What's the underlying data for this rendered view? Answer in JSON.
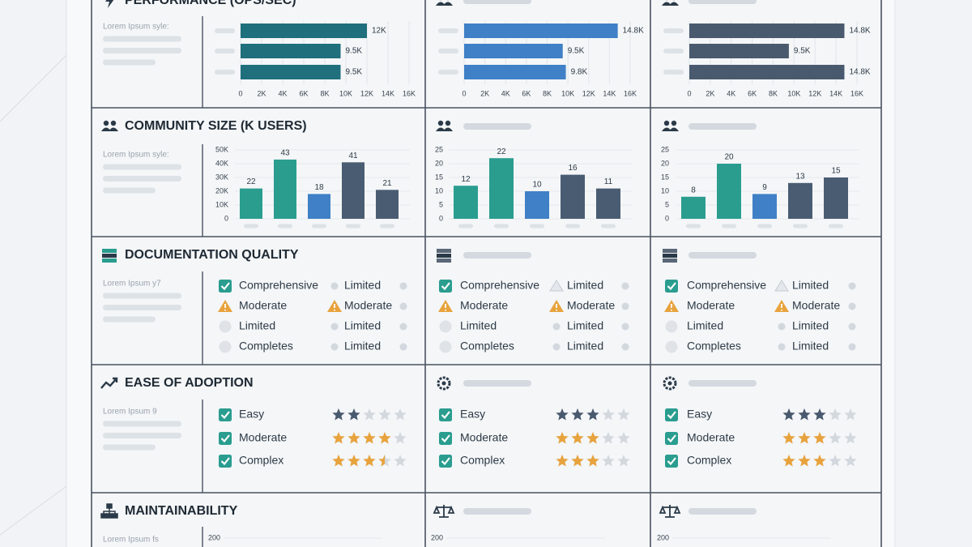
{
  "sections": [
    {
      "title": "PERFORMANCE (OPS/SEC)",
      "caption": "Lorem Ipsum syle:"
    },
    {
      "title": "COMMUNITY SIZE (K USERS)",
      "caption": "Lorem Ipsum syle:"
    },
    {
      "title": "DOCUMENTATION QUALITY",
      "caption": "Lorem Ipsum y7"
    },
    {
      "title": "EASE OF ADOPTION",
      "caption": "Lorem Ipsum 9"
    },
    {
      "title": "MAINTAINABILITY",
      "caption": "Lorem Ipsum fs"
    }
  ],
  "chart_data": [
    {
      "type": "hbar",
      "categories": [
        null,
        null,
        null
      ],
      "values": [
        12,
        9.5,
        9.5
      ],
      "value_labels": [
        "12K",
        "9.5K",
        "9.5K"
      ],
      "color": "#1f6f7c",
      "xlim": [
        0,
        16
      ],
      "xticks": [
        0,
        {
          "value": 2,
          "label": "2K"
        },
        {
          "value": 4,
          "label": "4K"
        },
        {
          "value": 6,
          "label": "6K"
        },
        {
          "value": 8,
          "label": "8K"
        },
        {
          "value": 10,
          "label": "10K"
        },
        {
          "value": 12,
          "label": "12K"
        },
        {
          "value": 14,
          "label": "14K"
        },
        {
          "value": 16,
          "label": "16K"
        }
      ],
      "grid": true
    },
    {
      "type": "hbar",
      "categories": [
        null,
        null,
        null
      ],
      "values": [
        14.8,
        9.5,
        9.8
      ],
      "value_labels": [
        "14.8K",
        "9.5K",
        "9.8K"
      ],
      "color": "#3f80c6",
      "xlim": [
        0,
        16
      ],
      "xticks": [
        0,
        {
          "value": 2,
          "label": "2K"
        },
        {
          "value": 4,
          "label": "4K"
        },
        {
          "value": 6,
          "label": "6K"
        },
        {
          "value": 8,
          "label": "8K"
        },
        {
          "value": 10,
          "label": "10K"
        },
        {
          "value": 12,
          "label": "12K"
        },
        {
          "value": 14,
          "label": "14K"
        },
        {
          "value": 16,
          "label": "16K"
        }
      ],
      "grid": true
    },
    {
      "type": "hbar",
      "categories": [
        null,
        null,
        null
      ],
      "values": [
        14.8,
        9.5,
        14.8
      ],
      "value_labels": [
        "14.8K",
        "9.5K",
        "14.8K"
      ],
      "color": "#4a5a6e",
      "xlim": [
        0,
        16
      ],
      "xticks": [
        0,
        {
          "value": 2,
          "label": "2K"
        },
        {
          "value": 4,
          "label": "4K"
        },
        {
          "value": 6,
          "label": "6K"
        },
        {
          "value": 8,
          "label": "8K"
        },
        {
          "value": 10,
          "label": "10K"
        },
        {
          "value": 12,
          "label": "12K"
        },
        {
          "value": 14,
          "label": "14K"
        },
        {
          "value": 16,
          "label": "16K"
        }
      ],
      "grid": true
    },
    {
      "type": "bar",
      "categories": [
        null,
        null,
        null,
        null,
        null
      ],
      "values": [
        22,
        43,
        18,
        41,
        21
      ],
      "colors": [
        "#2a9d8f",
        "#2a9d8f",
        "#3f80c6",
        "#4a5c72",
        "#4a5c72"
      ],
      "ylim": [
        0,
        50
      ],
      "yticks": [
        0,
        {
          "value": 10,
          "label": "10K"
        },
        {
          "value": 20,
          "label": "20K"
        },
        {
          "value": 30,
          "label": "30K"
        },
        {
          "value": 40,
          "label": "40K"
        },
        {
          "value": 50,
          "label": "50K"
        }
      ],
      "grid": true
    },
    {
      "type": "bar",
      "categories": [
        null,
        null,
        null,
        null,
        null
      ],
      "values": [
        12,
        22,
        10,
        16,
        11
      ],
      "colors": [
        "#2a9d8f",
        "#2a9d8f",
        "#3f80c6",
        "#4a5c72",
        "#4a5c72"
      ],
      "ylim": [
        0,
        25
      ],
      "yticks": [
        0,
        5,
        10,
        15,
        20,
        25
      ],
      "grid": true
    },
    {
      "type": "bar",
      "categories": [
        null,
        null,
        null,
        null,
        null
      ],
      "values": [
        8,
        20,
        9,
        13,
        15
      ],
      "colors": [
        "#2a9d8f",
        "#2a9d8f",
        "#3f80c6",
        "#4a5c72",
        "#4a5c72"
      ],
      "ylim": [
        0,
        25
      ],
      "yticks": [
        0,
        5,
        10,
        15,
        20,
        25
      ],
      "grid": true
    },
    {
      "type": "line",
      "ylim": [
        0,
        200
      ],
      "yticks": [
        200
      ]
    },
    {
      "type": "line",
      "ylim": [
        0,
        200
      ],
      "yticks": [
        200
      ]
    },
    {
      "type": "line",
      "ylim": [
        0,
        200
      ],
      "yticks": [
        200
      ]
    }
  ],
  "documentation": [
    {
      "items": [
        {
          "label": "Comprehensive",
          "icon": "check"
        },
        {
          "label": "Moderate",
          "icon": "warning"
        },
        {
          "label": "Limited",
          "icon": "circle"
        },
        {
          "label": "Completes",
          "icon": "circle"
        }
      ],
      "notes": [
        {
          "label": "Limited",
          "icon": "dot"
        },
        {
          "label": "Moderate",
          "icon": "warning"
        },
        {
          "label": "Limited",
          "icon": "dot"
        },
        {
          "label": "Limited",
          "icon": "dot"
        }
      ]
    },
    {
      "items": [
        {
          "label": "Comprehensive",
          "icon": "check"
        },
        {
          "label": "Moderate",
          "icon": "warning"
        },
        {
          "label": "Limited",
          "icon": "circle"
        },
        {
          "label": "Completes",
          "icon": "circle"
        }
      ],
      "notes": [
        {
          "label": "Limited",
          "icon": "triangle"
        },
        {
          "label": "Moderate",
          "icon": "warning"
        },
        {
          "label": "Limited",
          "icon": "dot"
        },
        {
          "label": "Limited",
          "icon": "dot"
        }
      ]
    },
    {
      "items": [
        {
          "label": "Comprehensive",
          "icon": "check"
        },
        {
          "label": "Moderate",
          "icon": "warning"
        },
        {
          "label": "Limited",
          "icon": "circle"
        },
        {
          "label": "Completes",
          "icon": "circle"
        }
      ],
      "notes": [
        {
          "label": "Limited",
          "icon": "triangle"
        },
        {
          "label": "Moderate",
          "icon": "warning"
        },
        {
          "label": "Limited",
          "icon": "dot"
        },
        {
          "label": "Limited",
          "icon": "dot"
        }
      ]
    }
  ],
  "adoption": [
    {
      "items": [
        {
          "label": "Easy",
          "rating": 2,
          "color": "#4a5a6e"
        },
        {
          "label": "Moderate",
          "rating": 4,
          "color": "#e8a33d"
        },
        {
          "label": "Complex",
          "rating": 3.5,
          "color": "#e8a33d"
        }
      ]
    },
    {
      "items": [
        {
          "label": "Easy",
          "rating": 3,
          "color": "#4a5a6e"
        },
        {
          "label": "Moderate",
          "rating": 3,
          "color": "#e8a33d"
        },
        {
          "label": "Complex",
          "rating": 3,
          "color": "#e8a33d"
        }
      ]
    },
    {
      "items": [
        {
          "label": "Easy",
          "rating": 3,
          "color": "#4a5a6e"
        },
        {
          "label": "Moderate",
          "rating": 3,
          "color": "#e8a33d"
        },
        {
          "label": "Complex",
          "rating": 3,
          "color": "#e8a33d"
        }
      ]
    }
  ]
}
